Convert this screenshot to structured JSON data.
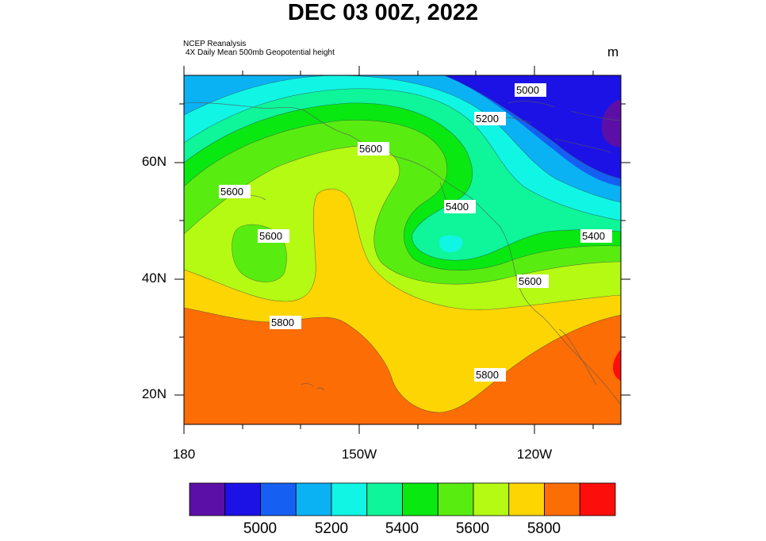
{
  "header": {
    "title": "DEC 03 00Z, 2022",
    "source_line1": "NCEP Reanalysis",
    "source_line2": "4X Daily Mean 500mb Geopotential height",
    "units": "m"
  },
  "axes": {
    "lat_labels": [
      "60N",
      "40N",
      "20N"
    ],
    "lon_labels": [
      "180",
      "150W",
      "120W"
    ]
  },
  "contour_labels": {
    "c5000": "5000",
    "c5200": "5200",
    "c5600a": "5600",
    "c5600b": "5600",
    "c5600c": "5600",
    "c5400a": "5400",
    "c5400b": "5400",
    "c5600d": "5600",
    "c5800a": "5800",
    "c5800b": "5800"
  },
  "colorbar": {
    "colors": [
      "#5c0fa6",
      "#1c12e6",
      "#1560f2",
      "#0ab2f4",
      "#11f5e4",
      "#0ef59a",
      "#09e811",
      "#59ec11",
      "#b5fa13",
      "#fdd502",
      "#fd6d05",
      "#fc0f0a"
    ],
    "labels": [
      "5000",
      "5200",
      "5400",
      "5600",
      "5800"
    ]
  }
}
